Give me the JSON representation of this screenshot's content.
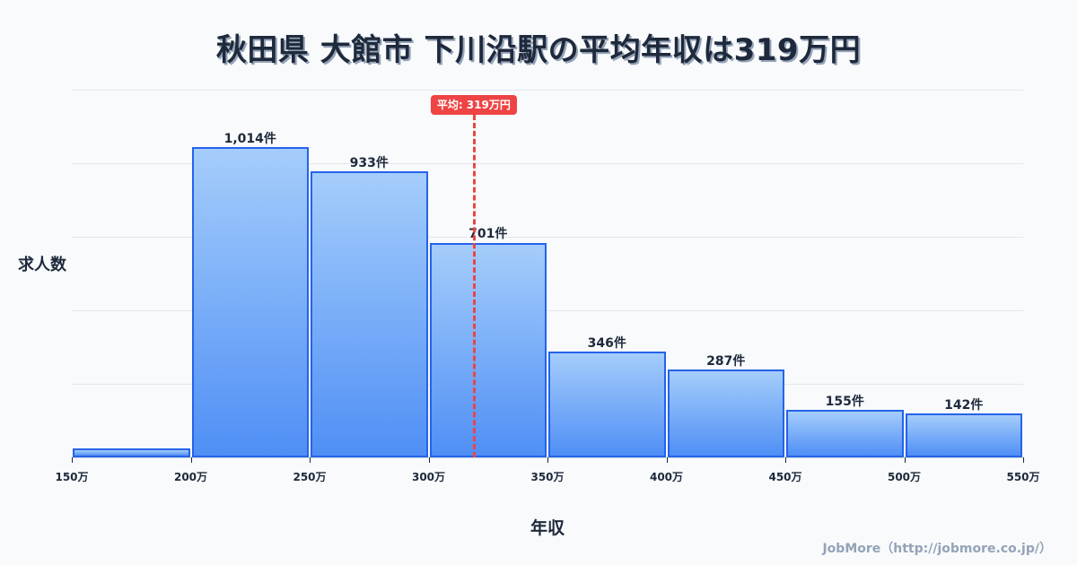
{
  "title": "秋田県 大館市 下川沿駅の平均年収は319万円",
  "y_axis_label": "求人数",
  "x_axis_label": "年収",
  "credit": "JobMore（http://jobmore.co.jp/）",
  "mean_badge": "平均: 319万円",
  "colors": {
    "bar_border": "#2563eb",
    "bar_top": "#a5cdfb",
    "bar_bottom": "#4f8ff5",
    "mean_line": "#ef4444",
    "title": "#1e293b"
  },
  "chart_data": {
    "type": "bar",
    "title": "秋田県 大館市 下川沿駅の平均年収は319万円",
    "xlabel": "年収",
    "ylabel": "求人数",
    "categories": [
      "150万-200万",
      "200万-250万",
      "250万-300万",
      "300万-350万",
      "350万-400万",
      "400万-450万",
      "450万-500万",
      "500万-550万"
    ],
    "values": [
      29,
      1014,
      933,
      701,
      346,
      287,
      155,
      142
    ],
    "value_labels": [
      "",
      "1,014件",
      "933件",
      "701件",
      "346件",
      "287件",
      "155件",
      "142件"
    ],
    "x_ticks": [
      "150万",
      "200万",
      "250万",
      "300万",
      "350万",
      "400万",
      "450万",
      "500万",
      "550万"
    ],
    "x_range": [
      150,
      550
    ],
    "ylim": [
      0,
      1200
    ],
    "grid": true,
    "mean": 319,
    "mean_label": "平均: 319万円"
  }
}
